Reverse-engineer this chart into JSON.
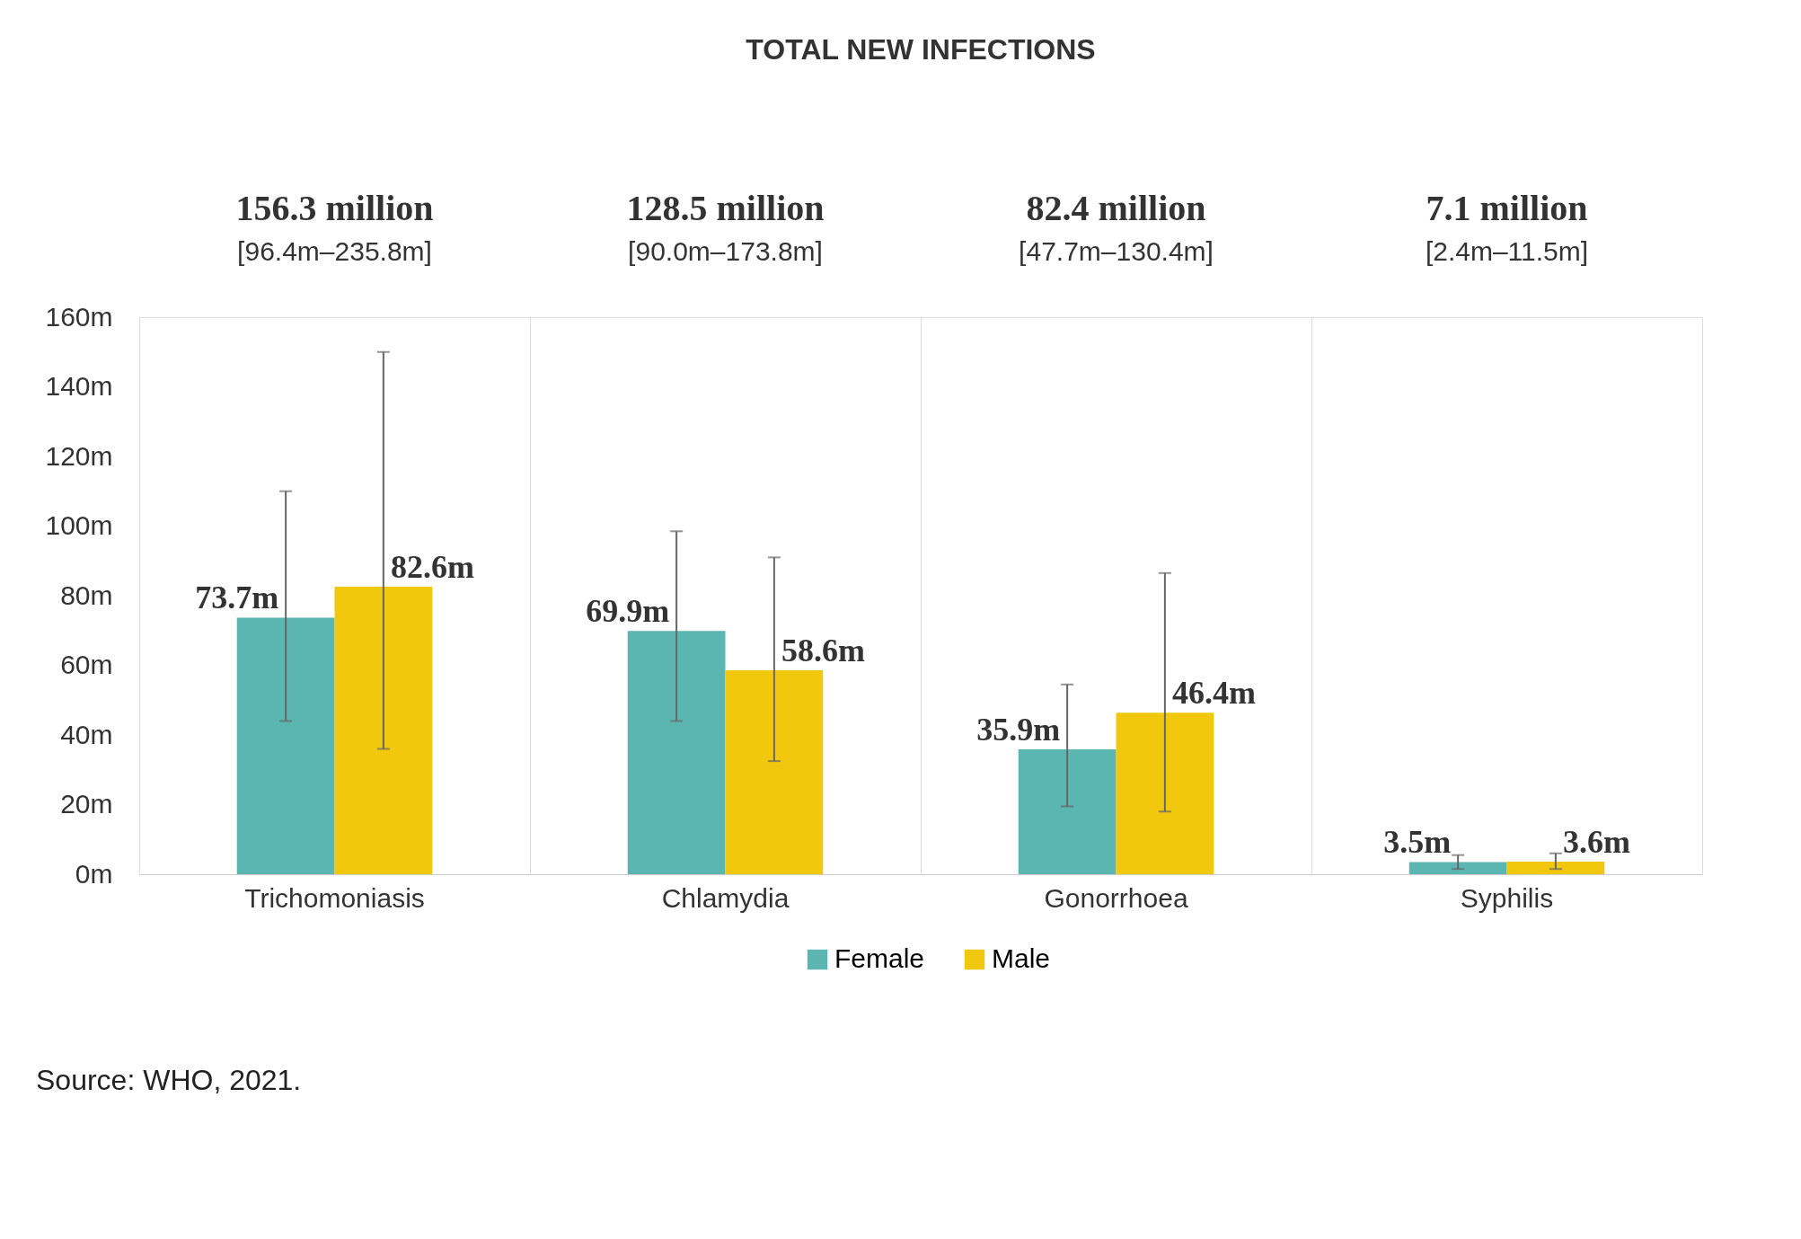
{
  "chart_data": {
    "type": "bar",
    "title": "TOTAL NEW INFECTIONS",
    "categories": [
      "Trichomoniasis",
      "Chlamydia",
      "Gonorrhoea",
      "Syphilis"
    ],
    "series": [
      {
        "name": "Female",
        "color": "#5bb5b0",
        "values": [
          73.7,
          69.9,
          35.9,
          3.5
        ],
        "value_labels": [
          "73.7m",
          "69.9m",
          "35.9m",
          "3.5m"
        ],
        "errors": [
          [
            44,
            110
          ],
          [
            44,
            98.5
          ],
          [
            19.5,
            54.5
          ],
          [
            1.5,
            5.5
          ]
        ]
      },
      {
        "name": "Male",
        "color": "#f2c80f",
        "values": [
          82.6,
          58.6,
          46.4,
          3.6
        ],
        "value_labels": [
          "82.6m",
          "58.6m",
          "46.4m",
          "3.6m"
        ],
        "errors": [
          [
            36,
            150
          ],
          [
            32.5,
            91
          ],
          [
            18,
            86.5
          ],
          [
            1.5,
            6
          ]
        ]
      }
    ],
    "ylim": [
      0,
      160
    ],
    "yticks": [
      {
        "value": 0,
        "label": "0m"
      },
      {
        "value": 20,
        "label": "20m"
      },
      {
        "value": 40,
        "label": "40m"
      },
      {
        "value": 60,
        "label": "60m"
      },
      {
        "value": 80,
        "label": "80m"
      },
      {
        "value": 100,
        "label": "100m"
      },
      {
        "value": 120,
        "label": "120m"
      },
      {
        "value": 140,
        "label": "140m"
      },
      {
        "value": 160,
        "label": "160m"
      }
    ],
    "grid": "x",
    "legend": "bottom",
    "annotations": [
      "156.3 million",
      "[96.4m–235.8m]",
      "128.5 million",
      "[90.0m–173.8m]",
      "82.4 million",
      "[47.7m–130.4m]",
      "7.1 million",
      "[2.4m–11.5m]",
      "Source: WHO, 2021."
    ]
  }
}
